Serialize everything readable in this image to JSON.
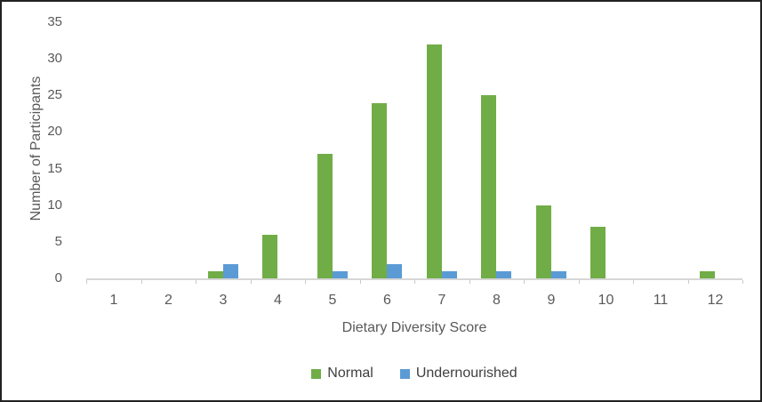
{
  "chart_data": {
    "type": "bar",
    "title": "",
    "xlabel": "Dietary Diversity Score",
    "ylabel": "Number of Participants",
    "categories": [
      "1",
      "2",
      "3",
      "4",
      "5",
      "6",
      "7",
      "8",
      "9",
      "10",
      "11",
      "12"
    ],
    "series": [
      {
        "name": "Normal",
        "color": "#70AD47",
        "values": [
          0,
          0,
          1,
          6,
          17,
          24,
          32,
          25,
          10,
          7,
          0,
          1
        ]
      },
      {
        "name": "Undernourished",
        "color": "#5B9BD5",
        "values": [
          0,
          0,
          2,
          0,
          1,
          2,
          1,
          1,
          1,
          0,
          0,
          0
        ]
      }
    ],
    "ylim": [
      0,
      35
    ],
    "yticks": [
      0,
      5,
      10,
      15,
      20,
      25,
      30,
      35
    ],
    "grid": false,
    "legend_position": "bottom",
    "colors": {
      "axis_line": "#d6d6d6",
      "tick_mark": "#c9c9c9",
      "axis_text": "#595959",
      "legend_text": "#404040",
      "frame_border": "#222222",
      "background": "#ffffff"
    }
  }
}
